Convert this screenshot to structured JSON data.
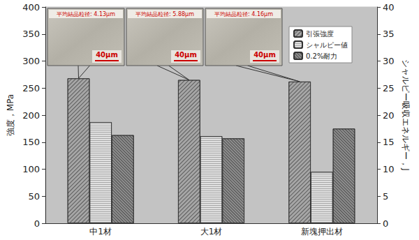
{
  "chart_data": {
    "type": "bar",
    "categories": [
      "中1材",
      "大1材",
      "新塊押出材"
    ],
    "series": [
      {
        "name": "引張強度",
        "color": "#a6a6a6",
        "values": [
          268,
          265,
          262
        ]
      },
      {
        "name": "シャルピー値",
        "color": "#e0e0e0",
        "values": [
          18.7,
          16.1,
          9.5
        ],
        "axis": "y2"
      },
      {
        "name": "0.2%耐力",
        "color": "#8f8f8f",
        "values": [
          163,
          157,
          175
        ]
      }
    ],
    "y_label": "強度，MPa",
    "y2_label": "シャルピー吸収エネルギー，J",
    "ylim": [
      0,
      400
    ],
    "yticks": [
      0,
      50,
      100,
      150,
      200,
      250,
      300,
      350,
      400
    ],
    "y2lim": [
      0,
      40
    ],
    "y2ticks": [
      0,
      5,
      10,
      15,
      20,
      25,
      30,
      35,
      40
    ],
    "grid": false,
    "legend": "top-right",
    "annotations": [
      {
        "text": "平均結晶粒径: 4.13μm",
        "scale": "40μm"
      },
      {
        "text": "平均結晶粒径: 5.88μm",
        "scale": "40μm"
      },
      {
        "text": "平均結晶粒径: 4.16μm",
        "scale": "40μm"
      }
    ]
  }
}
